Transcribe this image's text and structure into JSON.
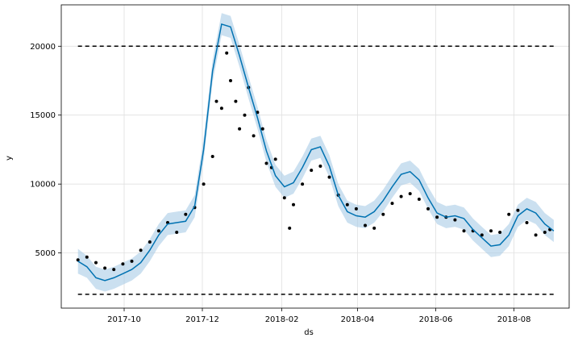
{
  "chart_data": {
    "type": "line",
    "title": "",
    "xlabel": "ds",
    "ylabel": "y",
    "x_range": [
      "2017-08-13",
      "2018-09-13"
    ],
    "ylim": [
      1000,
      23000
    ],
    "grid": true,
    "x_ticks": [
      "2017-10",
      "2017-12",
      "2018-02",
      "2018-04",
      "2018-06",
      "2018-08"
    ],
    "y_ticks": [
      5000,
      10000,
      15000,
      20000
    ],
    "cap": 20000,
    "floor": 2000,
    "colors": {
      "forecast": "#0072B2",
      "interval": "#a8cce6",
      "observed": "#000000",
      "bounds": "#000000",
      "grid": "#e0e0e0"
    },
    "series": [
      {
        "role": "forecast",
        "x": [
          "2017-08-26",
          "2017-09-02",
          "2017-09-09",
          "2017-09-16",
          "2017-09-23",
          "2017-09-30",
          "2017-10-07",
          "2017-10-14",
          "2017-10-21",
          "2017-10-28",
          "2017-11-04",
          "2017-11-11",
          "2017-11-18",
          "2017-11-25",
          "2017-12-02",
          "2017-12-09",
          "2017-12-16",
          "2017-12-23",
          "2017-12-30",
          "2018-01-06",
          "2018-01-13",
          "2018-01-20",
          "2018-01-27",
          "2018-02-03",
          "2018-02-10",
          "2018-02-17",
          "2018-02-24",
          "2018-03-03",
          "2018-03-10",
          "2018-03-17",
          "2018-03-24",
          "2018-03-31",
          "2018-04-07",
          "2018-04-14",
          "2018-04-21",
          "2018-04-28",
          "2018-05-05",
          "2018-05-12",
          "2018-05-19",
          "2018-05-26",
          "2018-06-02",
          "2018-06-09",
          "2018-06-16",
          "2018-06-23",
          "2018-06-30",
          "2018-07-07",
          "2018-07-14",
          "2018-07-21",
          "2018-07-28",
          "2018-08-04",
          "2018-08-11",
          "2018-08-18",
          "2018-08-25",
          "2018-09-01"
        ],
        "y": [
          4400,
          4000,
          3200,
          3000,
          3200,
          3500,
          3800,
          4300,
          5200,
          6300,
          7100,
          7200,
          7300,
          8400,
          12500,
          18200,
          21600,
          21400,
          19300,
          17000,
          14800,
          12400,
          10600,
          9800,
          10100,
          11200,
          12500,
          12700,
          11300,
          9200,
          8000,
          7700,
          7600,
          8000,
          8800,
          9800,
          10700,
          10900,
          10300,
          9000,
          7900,
          7600,
          7700,
          7500,
          6700,
          6100,
          5500,
          5600,
          6300,
          7700,
          8200,
          7900,
          7100,
          6600
        ]
      },
      {
        "role": "interval",
        "x": [
          "2017-08-26",
          "2017-09-02",
          "2017-09-09",
          "2017-09-16",
          "2017-09-23",
          "2017-09-30",
          "2017-10-07",
          "2017-10-14",
          "2017-10-21",
          "2017-10-28",
          "2017-11-04",
          "2017-11-11",
          "2017-11-18",
          "2017-11-25",
          "2017-12-02",
          "2017-12-09",
          "2017-12-16",
          "2017-12-23",
          "2017-12-30",
          "2018-01-06",
          "2018-01-13",
          "2018-01-20",
          "2018-01-27",
          "2018-02-03",
          "2018-02-10",
          "2018-02-17",
          "2018-02-24",
          "2018-03-03",
          "2018-03-10",
          "2018-03-17",
          "2018-03-24",
          "2018-03-31",
          "2018-04-07",
          "2018-04-14",
          "2018-04-21",
          "2018-04-28",
          "2018-05-05",
          "2018-05-12",
          "2018-05-19",
          "2018-05-26",
          "2018-06-02",
          "2018-06-09",
          "2018-06-16",
          "2018-06-23",
          "2018-06-30",
          "2018-07-07",
          "2018-07-14",
          "2018-07-21",
          "2018-07-28",
          "2018-08-04",
          "2018-08-11",
          "2018-08-18",
          "2018-08-25",
          "2018-09-01"
        ],
        "lower": [
          3500,
          3200,
          2400,
          2200,
          2400,
          2700,
          3000,
          3500,
          4400,
          5500,
          6300,
          6400,
          6500,
          7600,
          11700,
          17400,
          20800,
          20600,
          18500,
          16200,
          14000,
          11600,
          9800,
          9000,
          9300,
          10400,
          11700,
          11900,
          10500,
          8400,
          7200,
          6900,
          6800,
          7200,
          8000,
          9000,
          9900,
          10100,
          9500,
          8200,
          7100,
          6800,
          6900,
          6700,
          5900,
          5300,
          4700,
          4800,
          5500,
          6900,
          7400,
          7100,
          6300,
          5800
        ],
        "upper": [
          5300,
          4800,
          4000,
          3800,
          4000,
          4300,
          4600,
          5100,
          6000,
          7100,
          7900,
          8000,
          8100,
          9200,
          13300,
          19000,
          22400,
          22200,
          20100,
          17800,
          15600,
          13200,
          11400,
          10600,
          10900,
          12000,
          13300,
          13500,
          12100,
          10000,
          8800,
          8500,
          8400,
          8800,
          9600,
          10600,
          11500,
          11700,
          11100,
          9800,
          8700,
          8400,
          8500,
          8300,
          7500,
          6900,
          6300,
          6400,
          7100,
          8500,
          9000,
          8700,
          7900,
          7400
        ]
      },
      {
        "role": "observed",
        "x": [
          "2017-08-26",
          "2017-09-02",
          "2017-09-09",
          "2017-09-16",
          "2017-09-23",
          "2017-09-30",
          "2017-10-07",
          "2017-10-14",
          "2017-10-21",
          "2017-10-28",
          "2017-11-04",
          "2017-11-11",
          "2017-11-18",
          "2017-11-25",
          "2017-12-02",
          "2017-12-09",
          "2017-12-12",
          "2017-12-16",
          "2017-12-20",
          "2017-12-23",
          "2017-12-27",
          "2017-12-30",
          "2018-01-03",
          "2018-01-06",
          "2018-01-10",
          "2018-01-13",
          "2018-01-17",
          "2018-01-20",
          "2018-01-24",
          "2018-01-27",
          "2018-02-03",
          "2018-02-07",
          "2018-02-10",
          "2018-02-17",
          "2018-02-24",
          "2018-03-03",
          "2018-03-10",
          "2018-03-17",
          "2018-03-24",
          "2018-03-31",
          "2018-04-07",
          "2018-04-14",
          "2018-04-21",
          "2018-04-28",
          "2018-05-05",
          "2018-05-12",
          "2018-05-19",
          "2018-05-26",
          "2018-06-02",
          "2018-06-09",
          "2018-06-16",
          "2018-06-23",
          "2018-06-30",
          "2018-07-07",
          "2018-07-14",
          "2018-07-21",
          "2018-07-28",
          "2018-08-04",
          "2018-08-11",
          "2018-08-18",
          "2018-08-25",
          "2018-08-29"
        ],
        "y": [
          4500,
          4700,
          4300,
          3900,
          3800,
          4200,
          4400,
          5200,
          5800,
          6600,
          7200,
          6500,
          7800,
          8300,
          10000,
          12000,
          16000,
          15500,
          19500,
          17500,
          16000,
          14000,
          15000,
          17000,
          13500,
          15200,
          14000,
          11500,
          11200,
          11800,
          9000,
          6800,
          8500,
          10000,
          11000,
          11300,
          10500,
          9200,
          8500,
          8200,
          7000,
          6800,
          7800,
          8600,
          9100,
          9300,
          8900,
          8200,
          7600,
          7600,
          7400,
          6600,
          6600,
          6300,
          6600,
          6500,
          7800,
          8100,
          7200,
          6300,
          6500,
          6700
        ]
      }
    ]
  }
}
